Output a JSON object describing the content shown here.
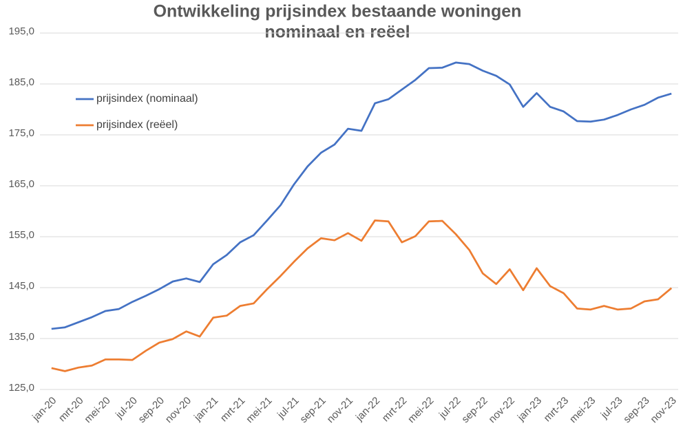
{
  "chart_data": {
    "type": "line",
    "title": [
      "Ontwikkeling prijsindex bestaande woningen",
      "nominaal en reëel"
    ],
    "categories": [
      "jan-20",
      null,
      "mrt-20",
      null,
      "mei-20",
      null,
      "jul-20",
      null,
      "sep-20",
      null,
      "nov-20",
      null,
      "jan-21",
      null,
      "mrt-21",
      null,
      "mei-21",
      null,
      "jul-21",
      null,
      "sep-21",
      null,
      "nov-21",
      null,
      "jan-22",
      null,
      "mrt-22",
      null,
      "mei-22",
      null,
      "jul-22",
      null,
      "sep-22",
      null,
      "nov-22",
      null,
      "jan-23",
      null,
      "mrt-23",
      null,
      "mei-23",
      null,
      "jul-23",
      null,
      "sep-23",
      null,
      "nov-23"
    ],
    "series": [
      {
        "name": "prijsindex (nominaal)",
        "color": "#4472c4",
        "values": [
          136.9,
          137.2,
          138.2,
          139.2,
          140.4,
          140.8,
          142.2,
          143.4,
          144.7,
          146.2,
          146.8,
          146.1,
          149.6,
          151.4,
          153.9,
          155.3,
          158.2,
          161.2,
          165.3,
          168.8,
          171.5,
          173.1,
          176.2,
          175.8,
          181.2,
          182.0,
          183.9,
          185.8,
          188.1,
          188.2,
          189.2,
          188.9,
          187.6,
          186.6,
          184.9,
          180.5,
          183.2,
          180.5,
          179.6,
          177.7,
          177.6,
          178.0,
          178.9,
          180.0,
          180.9,
          182.3,
          183.1
        ]
      },
      {
        "name": "prijsindex (reëel)",
        "color": "#ed7d31",
        "values": [
          129.2,
          128.6,
          129.3,
          129.7,
          130.9,
          130.9,
          130.8,
          132.6,
          134.2,
          134.9,
          136.4,
          135.4,
          139.1,
          139.5,
          141.4,
          141.9,
          144.7,
          147.3,
          150.1,
          152.7,
          154.7,
          154.3,
          155.7,
          154.2,
          158.2,
          158.0,
          153.9,
          155.1,
          158.0,
          158.1,
          155.5,
          152.4,
          147.8,
          145.7,
          148.6,
          144.5,
          148.8,
          145.3,
          143.9,
          140.9,
          140.7,
          141.4,
          140.7,
          140.9,
          142.3,
          142.7,
          144.9
        ]
      }
    ],
    "ylim": [
      125,
      195
    ],
    "yticks": [
      {
        "value": 125,
        "label": "125,0"
      },
      {
        "value": 135,
        "label": "135,0"
      },
      {
        "value": 145,
        "label": "145,0"
      },
      {
        "value": 155,
        "label": "155,0"
      },
      {
        "value": 165,
        "label": "165,0"
      },
      {
        "value": 175,
        "label": "175,0"
      },
      {
        "value": 185,
        "label": "185,0"
      },
      {
        "value": 195,
        "label": "195,0"
      }
    ],
    "grid": true,
    "legend": "top-left"
  }
}
